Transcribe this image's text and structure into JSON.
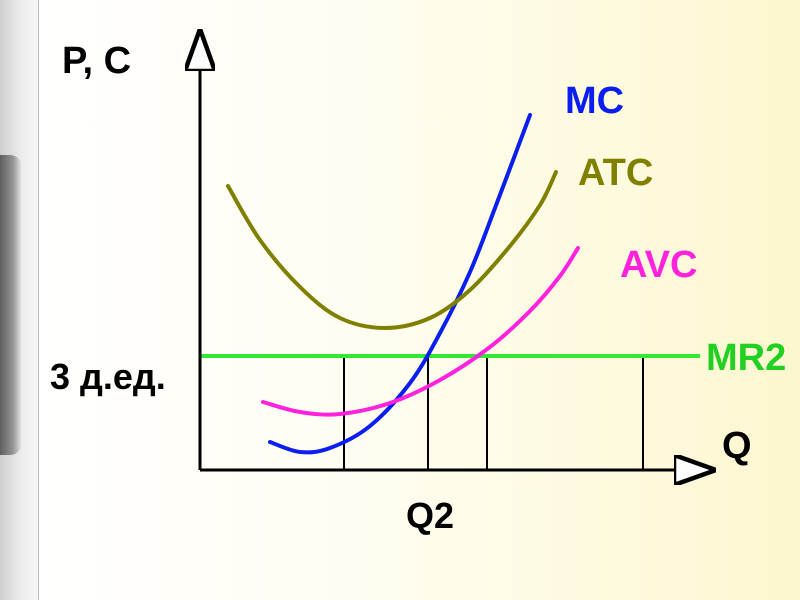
{
  "chart_data": {
    "type": "line",
    "ylabel": "P, C",
    "xlabel": "Q",
    "price_label": "3 д.ед.",
    "quantity_label": "Q2",
    "series": [
      {
        "name": "MC",
        "color": "#0a1ef0",
        "points": [
          [
            270,
            442
          ],
          [
            300,
            452
          ],
          [
            330,
            448
          ],
          [
            370,
            426
          ],
          [
            410,
            383
          ],
          [
            440,
            333
          ],
          [
            470,
            272
          ],
          [
            495,
            208
          ],
          [
            515,
            155
          ],
          [
            530,
            115
          ]
        ]
      },
      {
        "name": "ATC",
        "color": "#808000",
        "points": [
          [
            228,
            186
          ],
          [
            260,
            240
          ],
          [
            300,
            287
          ],
          [
            340,
            318
          ],
          [
            385,
            328
          ],
          [
            430,
            318
          ],
          [
            470,
            290
          ],
          [
            510,
            246
          ],
          [
            540,
            205
          ],
          [
            556,
            172
          ]
        ]
      },
      {
        "name": "AVC",
        "color": "#ff22dd",
        "points": [
          [
            263,
            402
          ],
          [
            300,
            412
          ],
          [
            340,
            414
          ],
          [
            390,
            403
          ],
          [
            440,
            380
          ],
          [
            490,
            347
          ],
          [
            530,
            311
          ],
          [
            560,
            276
          ],
          [
            578,
            248
          ]
        ]
      },
      {
        "name": "MR2",
        "color": "#33e833",
        "points": [
          [
            200,
            356
          ],
          [
            700,
            356
          ]
        ]
      }
    ],
    "vertical_lines_x": [
      344,
      428,
      487,
      643
    ],
    "axis_origin": [
      200,
      470
    ],
    "axis_x_end": 710,
    "axis_y_end": 35
  }
}
